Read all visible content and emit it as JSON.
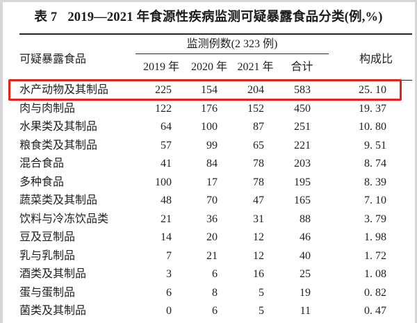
{
  "title": {
    "label": "表 7",
    "text": "2019—2021 年食源性疾病监测可疑暴露食品分类(例,%)"
  },
  "table": {
    "food_header": "可疑暴露食品",
    "group_header": "监测例数(2 323 例)",
    "year_headers": [
      "2019 年",
      "2020 年",
      "2021 年",
      "合计"
    ],
    "ratio_header": "构成比",
    "rows": [
      {
        "food": "水产动物及其制品",
        "y2019": "225",
        "y2020": "154",
        "y2021": "204",
        "total": "583",
        "ratio": "25. 10",
        "highlighted": true
      },
      {
        "food": "肉与肉制品",
        "y2019": "122",
        "y2020": "176",
        "y2021": "152",
        "total": "450",
        "ratio": "19. 37",
        "highlighted": false
      },
      {
        "food": "水果类及其制品",
        "y2019": "64",
        "y2020": "100",
        "y2021": "87",
        "total": "251",
        "ratio": "10. 80",
        "highlighted": false
      },
      {
        "food": "粮食类及其制品",
        "y2019": "57",
        "y2020": "99",
        "y2021": "65",
        "total": "221",
        "ratio": "9. 51",
        "highlighted": false
      },
      {
        "food": "混合食品",
        "y2019": "41",
        "y2020": "84",
        "y2021": "78",
        "total": "203",
        "ratio": "8. 74",
        "highlighted": false
      },
      {
        "food": "多种食品",
        "y2019": "100",
        "y2020": "17",
        "y2021": "78",
        "total": "195",
        "ratio": "8. 39",
        "highlighted": false
      },
      {
        "food": "蔬菜类及其制品",
        "y2019": "48",
        "y2020": "70",
        "y2021": "47",
        "total": "165",
        "ratio": "7. 10",
        "highlighted": false
      },
      {
        "food": "饮料与冷冻饮品类",
        "y2019": "21",
        "y2020": "36",
        "y2021": "31",
        "total": "88",
        "ratio": "3. 79",
        "highlighted": false
      },
      {
        "food": "豆及豆制品",
        "y2019": "14",
        "y2020": "20",
        "y2021": "12",
        "total": "46",
        "ratio": "1. 98",
        "highlighted": false
      },
      {
        "food": "乳与乳制品",
        "y2019": "7",
        "y2020": "21",
        "y2021": "12",
        "total": "40",
        "ratio": "1. 72",
        "highlighted": false
      },
      {
        "food": "酒类及其制品",
        "y2019": "3",
        "y2020": "6",
        "y2021": "16",
        "total": "25",
        "ratio": "1. 08",
        "highlighted": false
      },
      {
        "food": "蛋与蛋制品",
        "y2019": "6",
        "y2020": "8",
        "y2021": "5",
        "total": "19",
        "ratio": "0. 82",
        "highlighted": false
      },
      {
        "food": "菌类及其制品",
        "y2019": "0",
        "y2020": "6",
        "y2021": "5",
        "total": "11",
        "ratio": "0. 47",
        "highlighted": false
      }
    ]
  },
  "highlight_color": "#e3241b"
}
